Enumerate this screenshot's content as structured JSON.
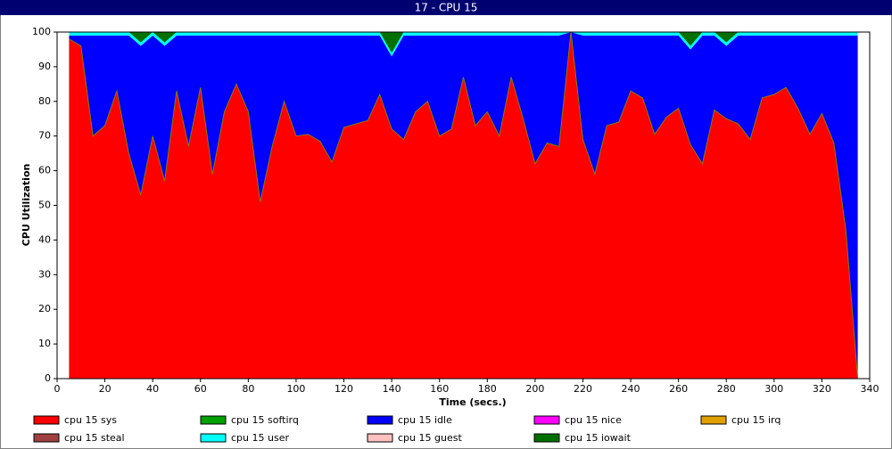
{
  "chart_data": {
    "type": "stacked_area",
    "title": "17 - CPU 15",
    "x_label": "Time (secs.)",
    "y_label": "CPU Utilization",
    "x": [
      5,
      10,
      15,
      20,
      25,
      30,
      35,
      40,
      45,
      50,
      55,
      60,
      65,
      70,
      75,
      80,
      85,
      90,
      95,
      100,
      105,
      110,
      115,
      120,
      125,
      130,
      135,
      140,
      145,
      150,
      155,
      160,
      165,
      170,
      175,
      180,
      185,
      190,
      195,
      200,
      205,
      210,
      215,
      220,
      225,
      230,
      235,
      240,
      245,
      250,
      255,
      260,
      265,
      270,
      275,
      280,
      285,
      290,
      295,
      300,
      305,
      310,
      315,
      320,
      325,
      330,
      335
    ],
    "xlim": [
      0,
      340
    ],
    "xticks": [
      0,
      20,
      40,
      60,
      80,
      100,
      120,
      140,
      160,
      180,
      200,
      220,
      240,
      260,
      280,
      300,
      320,
      340
    ],
    "ylim": [
      0,
      100
    ],
    "yticks": [
      0,
      10,
      20,
      30,
      40,
      50,
      60,
      70,
      80,
      90,
      100
    ],
    "series": [
      {
        "name": "cpu 15 sys",
        "color": "#ff0000",
        "values": [
          98,
          96,
          70,
          73,
          83,
          65,
          53,
          70,
          57,
          83,
          67,
          84,
          59,
          77,
          85,
          77,
          51,
          67,
          80,
          70,
          70.5,
          68.5,
          62.5,
          72.5,
          73.5,
          74.5,
          82,
          72,
          69,
          77,
          80,
          70,
          72,
          87,
          73,
          77,
          70,
          87,
          75,
          62,
          68,
          67,
          100,
          69,
          59,
          73,
          74,
          83,
          81,
          70.5,
          75.5,
          78,
          67.5,
          62,
          77.5,
          75,
          73.5,
          69,
          81,
          82,
          84,
          78,
          70.5,
          76.5,
          68,
          43,
          0
        ]
      },
      {
        "name": "cpu 15 softirq",
        "color": "#00a000",
        "values": [
          0,
          0,
          0,
          0,
          0,
          0,
          0,
          0,
          0,
          0,
          0,
          0,
          0,
          0,
          0,
          0,
          0,
          0,
          0,
          0,
          0,
          0,
          0,
          0,
          0,
          0,
          0,
          0,
          0,
          0,
          0,
          0,
          0,
          0,
          0,
          0,
          0,
          0,
          0,
          0,
          0,
          0,
          0,
          0,
          0,
          0,
          0,
          0,
          0,
          0,
          0,
          0,
          0,
          0,
          0,
          0,
          0,
          0,
          0,
          0,
          0,
          0,
          0,
          0,
          0,
          0,
          0
        ]
      },
      {
        "name": "cpu 15 idle",
        "color": "#0000ff",
        "values": [
          1,
          3,
          29,
          26,
          16,
          34,
          43,
          29,
          39,
          16,
          32,
          15,
          40,
          22,
          14,
          22,
          48,
          32,
          19,
          29,
          28.5,
          30.5,
          36.5,
          26.5,
          25.5,
          24.5,
          17,
          21,
          30,
          22,
          19,
          29,
          27,
          12,
          26,
          22,
          29,
          12,
          24,
          37,
          31,
          32,
          0,
          30,
          40,
          26,
          25,
          16,
          18,
          28.5,
          23.5,
          21,
          27.5,
          37,
          21.5,
          21,
          25.5,
          30,
          18,
          17,
          15,
          21,
          28.5,
          22.5,
          31,
          56,
          99
        ]
      },
      {
        "name": "cpu 15 nice",
        "color": "#ff00ff",
        "values": [
          0,
          0,
          0,
          0,
          0,
          0,
          0,
          0,
          0,
          0,
          0,
          0,
          0,
          0,
          0,
          0,
          0,
          0,
          0,
          0,
          0,
          0,
          0,
          0,
          0,
          0,
          0,
          0,
          0,
          0,
          0,
          0,
          0,
          0,
          0,
          0,
          0,
          0,
          0,
          0,
          0,
          0,
          0,
          0,
          0,
          0,
          0,
          0,
          0,
          0,
          0,
          0,
          0,
          0,
          0,
          0,
          0,
          0,
          0,
          0,
          0,
          0,
          0,
          0,
          0,
          0,
          0
        ]
      },
      {
        "name": "cpu 15 irq",
        "color": "#e0a000",
        "values": [
          0,
          0,
          0,
          0,
          0,
          0,
          0,
          0,
          0,
          0,
          0,
          0,
          0,
          0,
          0,
          0,
          0,
          0,
          0,
          0,
          0,
          0,
          0,
          0,
          0,
          0,
          0,
          0,
          0,
          0,
          0,
          0,
          0,
          0,
          0,
          0,
          0,
          0,
          0,
          0,
          0,
          0,
          0,
          0,
          0,
          0,
          0,
          0,
          0,
          0,
          0,
          0,
          0,
          0,
          0,
          0,
          0,
          0,
          0,
          0,
          0,
          0,
          0,
          0,
          0,
          0,
          0
        ]
      },
      {
        "name": "cpu 15 steal",
        "color": "#a04040",
        "values": [
          0,
          0,
          0,
          0,
          0,
          0,
          0,
          0,
          0,
          0,
          0,
          0,
          0,
          0,
          0,
          0,
          0,
          0,
          0,
          0,
          0,
          0,
          0,
          0,
          0,
          0,
          0,
          0,
          0,
          0,
          0,
          0,
          0,
          0,
          0,
          0,
          0,
          0,
          0,
          0,
          0,
          0,
          0,
          0,
          0,
          0,
          0,
          0,
          0,
          0,
          0,
          0,
          0,
          0,
          0,
          0,
          0,
          0,
          0,
          0,
          0,
          0,
          0,
          0,
          0,
          0,
          0
        ]
      },
      {
        "name": "cpu 15 user",
        "color": "#00ffff",
        "values": [
          1,
          1,
          1,
          1,
          1,
          1,
          1,
          1,
          1,
          1,
          1,
          1,
          1,
          1,
          1,
          1,
          1,
          1,
          1,
          1,
          1,
          1,
          1,
          1,
          1,
          1,
          1,
          1,
          1,
          1,
          1,
          1,
          1,
          1,
          1,
          1,
          1,
          1,
          1,
          1,
          1,
          1,
          0,
          1,
          1,
          1,
          1,
          1,
          1,
          1,
          1,
          1,
          1,
          1,
          1,
          1,
          1,
          1,
          1,
          1,
          1,
          1,
          1,
          1,
          1,
          1,
          1
        ]
      },
      {
        "name": "cpu 15 guest",
        "color": "#ffc0c0",
        "values": [
          0,
          0,
          0,
          0,
          0,
          0,
          0,
          0,
          0,
          0,
          0,
          0,
          0,
          0,
          0,
          0,
          0,
          0,
          0,
          0,
          0,
          0,
          0,
          0,
          0,
          0,
          0,
          0,
          0,
          0,
          0,
          0,
          0,
          0,
          0,
          0,
          0,
          0,
          0,
          0,
          0,
          0,
          0,
          0,
          0,
          0,
          0,
          0,
          0,
          0,
          0,
          0,
          0,
          0,
          0,
          0,
          0,
          0,
          0,
          0,
          0,
          0,
          0,
          0,
          0,
          0,
          0
        ]
      },
      {
        "name": "cpu 15 iowait",
        "color": "#007000",
        "values": [
          0,
          0,
          0,
          0,
          0,
          0,
          3,
          0,
          3,
          0,
          0,
          0,
          0,
          0,
          0,
          0,
          0,
          0,
          0,
          0,
          0,
          0,
          0,
          0,
          0,
          0,
          0,
          6,
          0,
          0,
          0,
          0,
          0,
          0,
          0,
          0,
          0,
          0,
          0,
          0,
          0,
          0,
          0,
          0,
          0,
          0,
          0,
          0,
          0,
          0,
          0,
          0,
          4,
          0,
          0,
          3,
          0,
          0,
          0,
          0,
          0,
          0,
          0,
          0,
          0,
          0,
          0
        ]
      }
    ]
  }
}
